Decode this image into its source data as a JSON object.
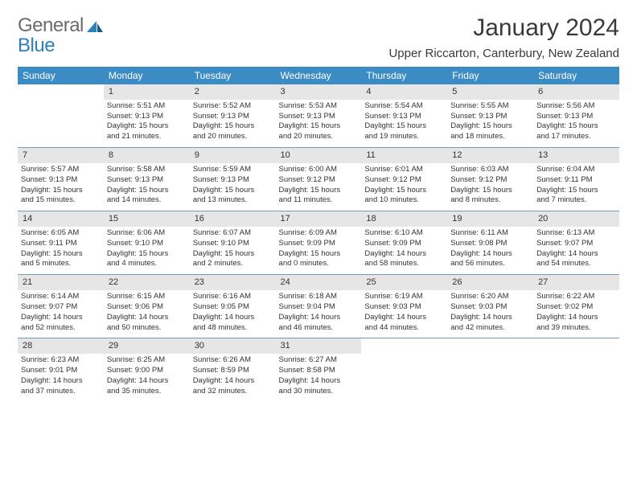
{
  "logo": {
    "line1": "General",
    "line2": "Blue"
  },
  "title": "January 2024",
  "location": "Upper Riccarton, Canterbury, New Zealand",
  "colors": {
    "header_bg": "#3b8bc4",
    "header_text": "#ffffff",
    "daynum_bg": "#e6e6e6",
    "rule": "#7a99b0",
    "body_text": "#333333",
    "logo_gray": "#6b6b6b",
    "logo_blue": "#2d7fb8"
  },
  "weekdays": [
    "Sunday",
    "Monday",
    "Tuesday",
    "Wednesday",
    "Thursday",
    "Friday",
    "Saturday"
  ],
  "weeks": [
    {
      "nums": [
        "",
        "1",
        "2",
        "3",
        "4",
        "5",
        "6"
      ],
      "cells": [
        {
          "empty": true
        },
        {
          "sunrise": "Sunrise: 5:51 AM",
          "sunset": "Sunset: 9:13 PM",
          "day1": "Daylight: 15 hours",
          "day2": "and 21 minutes."
        },
        {
          "sunrise": "Sunrise: 5:52 AM",
          "sunset": "Sunset: 9:13 PM",
          "day1": "Daylight: 15 hours",
          "day2": "and 20 minutes."
        },
        {
          "sunrise": "Sunrise: 5:53 AM",
          "sunset": "Sunset: 9:13 PM",
          "day1": "Daylight: 15 hours",
          "day2": "and 20 minutes."
        },
        {
          "sunrise": "Sunrise: 5:54 AM",
          "sunset": "Sunset: 9:13 PM",
          "day1": "Daylight: 15 hours",
          "day2": "and 19 minutes."
        },
        {
          "sunrise": "Sunrise: 5:55 AM",
          "sunset": "Sunset: 9:13 PM",
          "day1": "Daylight: 15 hours",
          "day2": "and 18 minutes."
        },
        {
          "sunrise": "Sunrise: 5:56 AM",
          "sunset": "Sunset: 9:13 PM",
          "day1": "Daylight: 15 hours",
          "day2": "and 17 minutes."
        }
      ]
    },
    {
      "nums": [
        "7",
        "8",
        "9",
        "10",
        "11",
        "12",
        "13"
      ],
      "cells": [
        {
          "sunrise": "Sunrise: 5:57 AM",
          "sunset": "Sunset: 9:13 PM",
          "day1": "Daylight: 15 hours",
          "day2": "and 15 minutes."
        },
        {
          "sunrise": "Sunrise: 5:58 AM",
          "sunset": "Sunset: 9:13 PM",
          "day1": "Daylight: 15 hours",
          "day2": "and 14 minutes."
        },
        {
          "sunrise": "Sunrise: 5:59 AM",
          "sunset": "Sunset: 9:13 PM",
          "day1": "Daylight: 15 hours",
          "day2": "and 13 minutes."
        },
        {
          "sunrise": "Sunrise: 6:00 AM",
          "sunset": "Sunset: 9:12 PM",
          "day1": "Daylight: 15 hours",
          "day2": "and 11 minutes."
        },
        {
          "sunrise": "Sunrise: 6:01 AM",
          "sunset": "Sunset: 9:12 PM",
          "day1": "Daylight: 15 hours",
          "day2": "and 10 minutes."
        },
        {
          "sunrise": "Sunrise: 6:03 AM",
          "sunset": "Sunset: 9:12 PM",
          "day1": "Daylight: 15 hours",
          "day2": "and 8 minutes."
        },
        {
          "sunrise": "Sunrise: 6:04 AM",
          "sunset": "Sunset: 9:11 PM",
          "day1": "Daylight: 15 hours",
          "day2": "and 7 minutes."
        }
      ]
    },
    {
      "nums": [
        "14",
        "15",
        "16",
        "17",
        "18",
        "19",
        "20"
      ],
      "cells": [
        {
          "sunrise": "Sunrise: 6:05 AM",
          "sunset": "Sunset: 9:11 PM",
          "day1": "Daylight: 15 hours",
          "day2": "and 5 minutes."
        },
        {
          "sunrise": "Sunrise: 6:06 AM",
          "sunset": "Sunset: 9:10 PM",
          "day1": "Daylight: 15 hours",
          "day2": "and 4 minutes."
        },
        {
          "sunrise": "Sunrise: 6:07 AM",
          "sunset": "Sunset: 9:10 PM",
          "day1": "Daylight: 15 hours",
          "day2": "and 2 minutes."
        },
        {
          "sunrise": "Sunrise: 6:09 AM",
          "sunset": "Sunset: 9:09 PM",
          "day1": "Daylight: 15 hours",
          "day2": "and 0 minutes."
        },
        {
          "sunrise": "Sunrise: 6:10 AM",
          "sunset": "Sunset: 9:09 PM",
          "day1": "Daylight: 14 hours",
          "day2": "and 58 minutes."
        },
        {
          "sunrise": "Sunrise: 6:11 AM",
          "sunset": "Sunset: 9:08 PM",
          "day1": "Daylight: 14 hours",
          "day2": "and 56 minutes."
        },
        {
          "sunrise": "Sunrise: 6:13 AM",
          "sunset": "Sunset: 9:07 PM",
          "day1": "Daylight: 14 hours",
          "day2": "and 54 minutes."
        }
      ]
    },
    {
      "nums": [
        "21",
        "22",
        "23",
        "24",
        "25",
        "26",
        "27"
      ],
      "cells": [
        {
          "sunrise": "Sunrise: 6:14 AM",
          "sunset": "Sunset: 9:07 PM",
          "day1": "Daylight: 14 hours",
          "day2": "and 52 minutes."
        },
        {
          "sunrise": "Sunrise: 6:15 AM",
          "sunset": "Sunset: 9:06 PM",
          "day1": "Daylight: 14 hours",
          "day2": "and 50 minutes."
        },
        {
          "sunrise": "Sunrise: 6:16 AM",
          "sunset": "Sunset: 9:05 PM",
          "day1": "Daylight: 14 hours",
          "day2": "and 48 minutes."
        },
        {
          "sunrise": "Sunrise: 6:18 AM",
          "sunset": "Sunset: 9:04 PM",
          "day1": "Daylight: 14 hours",
          "day2": "and 46 minutes."
        },
        {
          "sunrise": "Sunrise: 6:19 AM",
          "sunset": "Sunset: 9:03 PM",
          "day1": "Daylight: 14 hours",
          "day2": "and 44 minutes."
        },
        {
          "sunrise": "Sunrise: 6:20 AM",
          "sunset": "Sunset: 9:03 PM",
          "day1": "Daylight: 14 hours",
          "day2": "and 42 minutes."
        },
        {
          "sunrise": "Sunrise: 6:22 AM",
          "sunset": "Sunset: 9:02 PM",
          "day1": "Daylight: 14 hours",
          "day2": "and 39 minutes."
        }
      ]
    },
    {
      "nums": [
        "28",
        "29",
        "30",
        "31",
        "",
        "",
        ""
      ],
      "cells": [
        {
          "sunrise": "Sunrise: 6:23 AM",
          "sunset": "Sunset: 9:01 PM",
          "day1": "Daylight: 14 hours",
          "day2": "and 37 minutes."
        },
        {
          "sunrise": "Sunrise: 6:25 AM",
          "sunset": "Sunset: 9:00 PM",
          "day1": "Daylight: 14 hours",
          "day2": "and 35 minutes."
        },
        {
          "sunrise": "Sunrise: 6:26 AM",
          "sunset": "Sunset: 8:59 PM",
          "day1": "Daylight: 14 hours",
          "day2": "and 32 minutes."
        },
        {
          "sunrise": "Sunrise: 6:27 AM",
          "sunset": "Sunset: 8:58 PM",
          "day1": "Daylight: 14 hours",
          "day2": "and 30 minutes."
        },
        {
          "empty": true
        },
        {
          "empty": true
        },
        {
          "empty": true
        }
      ]
    }
  ]
}
